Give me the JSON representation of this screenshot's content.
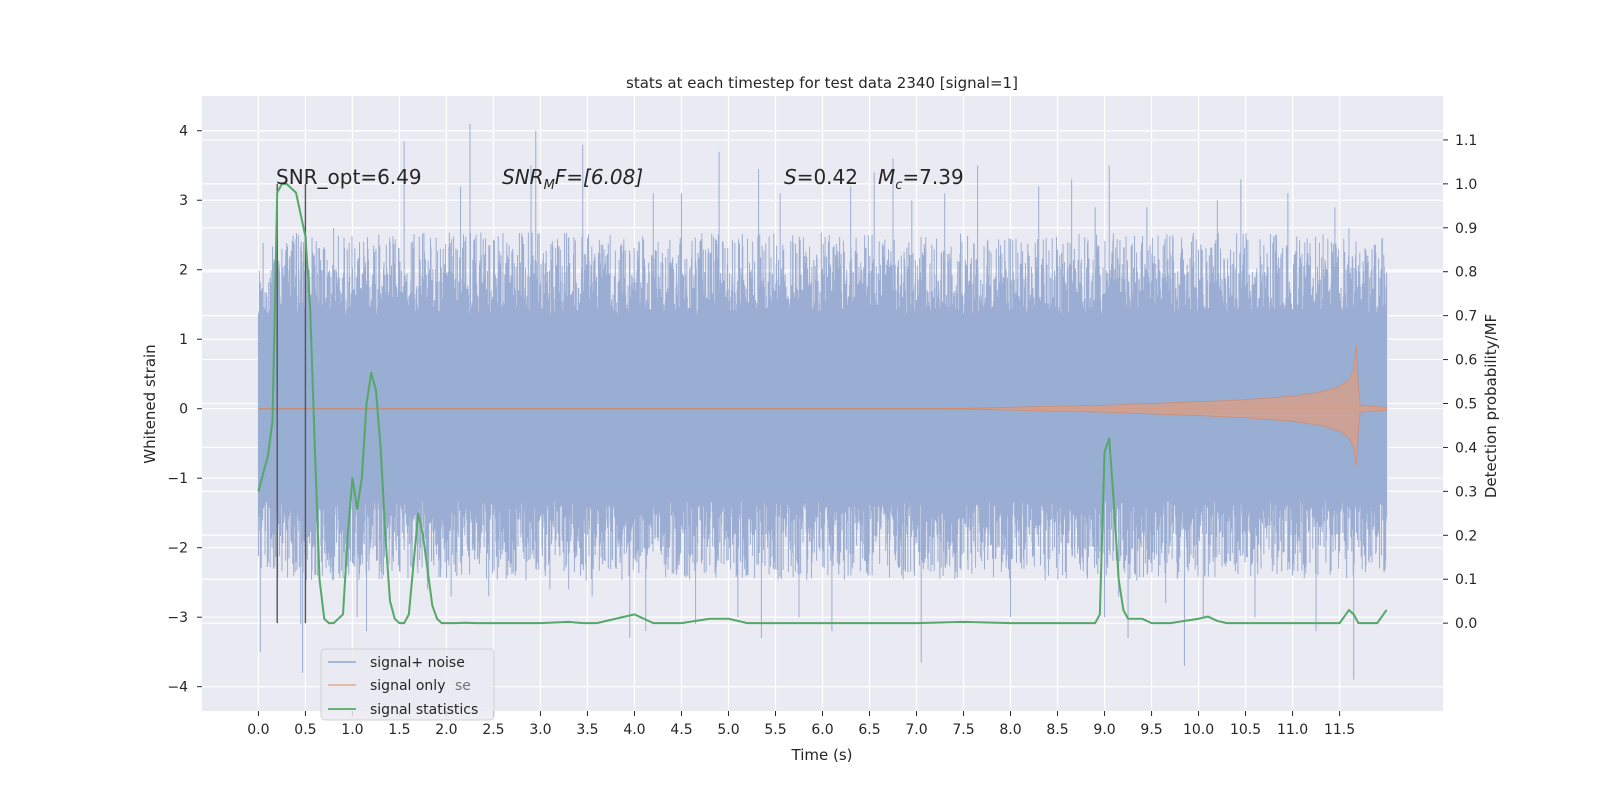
{
  "chart_data": {
    "type": "line",
    "title": "stats at each timestep for test data 2340 [signal=1]",
    "xlabel": "Time (s)",
    "ylabel_left": "Whitened strain",
    "ylabel_right": "Detection probability/MF",
    "xlim": [
      -0.6,
      12.6
    ],
    "ylim_left": [
      -4.35,
      4.5
    ],
    "ylim_right": [
      -0.2,
      1.2
    ],
    "x_ticks": [
      "0.0",
      "0.5",
      "1.0",
      "1.5",
      "2.0",
      "2.5",
      "3.0",
      "3.5",
      "4.0",
      "4.5",
      "5.0",
      "5.5",
      "6.0",
      "6.5",
      "7.0",
      "7.5",
      "8.0",
      "8.5",
      "9.0",
      "9.5",
      "10.0",
      "10.5",
      "11.0",
      "11.5"
    ],
    "y_ticks_left": [
      4,
      3,
      2,
      1,
      0,
      -1,
      -2,
      -3,
      -4
    ],
    "y_ticks_left_labels": [
      "4",
      "3",
      "2",
      "1",
      "0",
      "−1",
      "−2",
      "−3",
      "−4"
    ],
    "y_ticks_right": [
      "1.1",
      "1.0",
      "0.9",
      "0.8",
      "0.7",
      "0.6",
      "0.5",
      "0.4",
      "0.3",
      "0.2",
      "0.1",
      "0.0"
    ],
    "grid": true,
    "annotations": {
      "snr_opt": "SNR_opt=6.49",
      "snr_mf_main": "SNR",
      "snr_mf_sub": "M",
      "snr_mf_rest": "F=[6.08]",
      "s_var": "S",
      "s_val": "=0.42",
      "mc_var": "M",
      "mc_sub": "c",
      "mc_val": "=7.39"
    },
    "vertical_markers": [
      0.2,
      0.5
    ],
    "legend": {
      "placement": "lower-left",
      "entries": [
        "signal+ noise",
        "signal only",
        "signal statistics"
      ],
      "ghost_text": "se"
    },
    "series": [
      {
        "name": "signal+ noise",
        "color": "#4c72b0",
        "axis": "left",
        "band_core": [
          -1.2,
          1.3
        ],
        "band_typical": [
          -1.9,
          1.95
        ],
        "spikes": [
          [
            0.02,
            -3.5
          ],
          [
            0.25,
            2.3
          ],
          [
            0.45,
            -3.1
          ],
          [
            0.47,
            -3.8
          ],
          [
            0.8,
            2.6
          ],
          [
            1.05,
            -3.0
          ],
          [
            1.12,
            2.4
          ],
          [
            1.15,
            -3.2
          ],
          [
            1.4,
            2.4
          ],
          [
            1.55,
            3.85
          ],
          [
            1.8,
            -2.6
          ],
          [
            2.05,
            -2.7
          ],
          [
            2.15,
            3.2
          ],
          [
            2.25,
            4.1
          ],
          [
            2.45,
            -2.7
          ],
          [
            2.9,
            3.5
          ],
          [
            2.95,
            4.0
          ],
          [
            3.1,
            -2.6
          ],
          [
            3.3,
            -2.6
          ],
          [
            3.45,
            3.8
          ],
          [
            3.55,
            -2.7
          ],
          [
            3.95,
            -3.3
          ],
          [
            4.12,
            -3.2
          ],
          [
            4.2,
            3.1
          ],
          [
            4.5,
            3.1
          ],
          [
            4.65,
            -3.1
          ],
          [
            4.9,
            3.7
          ],
          [
            5.1,
            -3.0
          ],
          [
            5.32,
            3.45
          ],
          [
            5.35,
            -3.3
          ],
          [
            5.55,
            3.1
          ],
          [
            5.75,
            -3.0
          ],
          [
            6.1,
            -3.2
          ],
          [
            6.3,
            3.2
          ],
          [
            6.55,
            3.4
          ],
          [
            6.75,
            3.6
          ],
          [
            6.95,
            3.0
          ],
          [
            7.05,
            -3.65
          ],
          [
            7.3,
            3.1
          ],
          [
            7.65,
            3.5
          ],
          [
            8.0,
            -3.0
          ],
          [
            8.3,
            3.2
          ],
          [
            8.65,
            3.3
          ],
          [
            8.9,
            2.9
          ],
          [
            9.0,
            -3.0
          ],
          [
            9.05,
            3.5
          ],
          [
            9.15,
            -2.7
          ],
          [
            9.25,
            -3.3
          ],
          [
            9.45,
            2.9
          ],
          [
            9.65,
            -2.8
          ],
          [
            9.85,
            -3.7
          ],
          [
            10.05,
            -3.0
          ],
          [
            10.2,
            3.0
          ],
          [
            10.45,
            3.3
          ],
          [
            10.6,
            -3.0
          ],
          [
            10.95,
            3.1
          ],
          [
            11.25,
            -3.2
          ],
          [
            11.45,
            2.9
          ],
          [
            11.6,
            2.6
          ],
          [
            11.65,
            -3.9
          ],
          [
            11.8,
            2.2
          ]
        ],
        "values": "pseudo-random dense strain samples, t=0..12 s"
      },
      {
        "name": "signal only",
        "color": "#dd8452",
        "axis": "left",
        "envelope": [
          [
            7.3,
            0.0
          ],
          [
            8.0,
            0.02
          ],
          [
            9.0,
            0.05
          ],
          [
            10.0,
            0.1
          ],
          [
            10.5,
            0.13
          ],
          [
            11.0,
            0.18
          ],
          [
            11.3,
            0.24
          ],
          [
            11.5,
            0.32
          ],
          [
            11.6,
            0.42
          ],
          [
            11.65,
            0.56
          ],
          [
            11.68,
            0.9
          ],
          [
            11.7,
            0.3
          ],
          [
            11.72,
            0.05
          ],
          [
            12.0,
            0.02
          ]
        ],
        "end_low": -0.82
      },
      {
        "name": "signal statistics",
        "color": "#55a868",
        "axis": "right",
        "x": [
          0.0,
          0.1,
          0.15,
          0.2,
          0.25,
          0.3,
          0.4,
          0.5,
          0.55,
          0.6,
          0.65,
          0.7,
          0.75,
          0.8,
          0.9,
          0.95,
          1.0,
          1.05,
          1.1,
          1.15,
          1.2,
          1.25,
          1.3,
          1.35,
          1.4,
          1.45,
          1.5,
          1.55,
          1.6,
          1.7,
          1.75,
          1.8,
          1.85,
          1.9,
          1.95,
          2.0,
          2.05,
          2.1,
          2.2,
          2.3,
          2.5,
          3.0,
          3.3,
          3.45,
          3.6,
          4.0,
          4.2,
          4.3,
          4.5,
          4.8,
          5.0,
          5.2,
          5.5,
          6.0,
          6.5,
          7.0,
          7.5,
          8.0,
          8.2,
          8.5,
          8.9,
          8.95,
          9.0,
          9.05,
          9.1,
          9.15,
          9.2,
          9.25,
          9.3,
          9.4,
          9.5,
          9.7,
          10.0,
          10.1,
          10.2,
          10.3,
          10.5,
          11.0,
          11.5,
          11.55,
          11.6,
          11.65,
          11.7,
          11.8,
          11.9,
          12.0
        ],
        "values": [
          0.3,
          0.38,
          0.46,
          0.98,
          1.0,
          1.0,
          0.98,
          0.88,
          0.72,
          0.4,
          0.1,
          0.01,
          0.0,
          0.0,
          0.02,
          0.2,
          0.33,
          0.26,
          0.33,
          0.5,
          0.57,
          0.53,
          0.4,
          0.2,
          0.05,
          0.01,
          0.0,
          0.0,
          0.02,
          0.25,
          0.2,
          0.12,
          0.04,
          0.01,
          0.0,
          0.0,
          0.0,
          0.0,
          0.001,
          0.0,
          0.0,
          0.0,
          0.003,
          0.0,
          0.0,
          0.02,
          0.0,
          0.0,
          0.0,
          0.01,
          0.01,
          0.0,
          0.0,
          0.0,
          0.0,
          0.0,
          0.003,
          0.0,
          0.0,
          0.0,
          0.0,
          0.02,
          0.39,
          0.42,
          0.27,
          0.1,
          0.03,
          0.01,
          0.01,
          0.01,
          0.0,
          0.0,
          0.01,
          0.015,
          0.005,
          0.0,
          0.0,
          0.0,
          0.0,
          0.015,
          0.03,
          0.02,
          0.0,
          0.0,
          0.0,
          0.03
        ]
      }
    ]
  }
}
